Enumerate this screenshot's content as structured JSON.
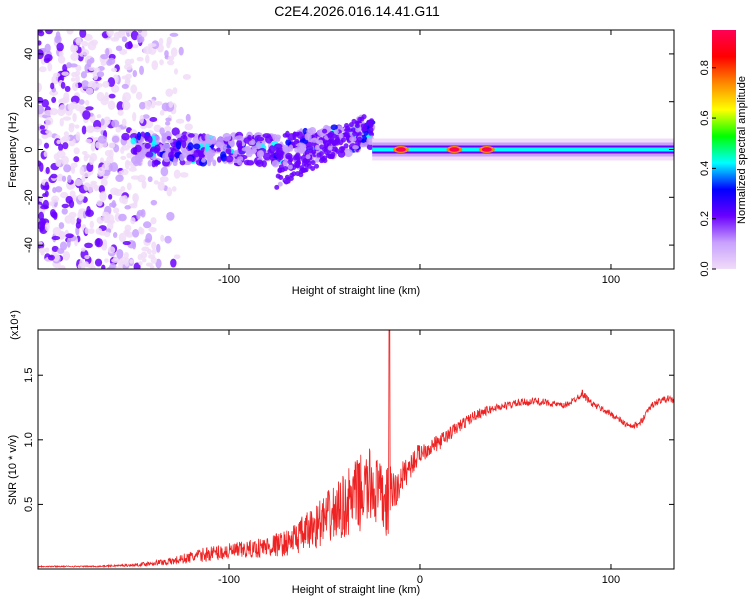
{
  "title": "C2E4.2026.016.14.41.G11",
  "colors": {
    "trace": "#ee2222",
    "frame": "#000000",
    "background": "#ffffff"
  },
  "chart_data": [
    {
      "type": "heatmap",
      "xlabel": "Height of straight line (km)",
      "ylabel": "Frequency (Hz)",
      "xlim": [
        -200,
        133
      ],
      "ylim": [
        -50,
        50
      ],
      "xticks": [
        -100,
        0,
        100
      ],
      "xtick_labels": [
        "-100",
        "",
        "100"
      ],
      "yticks": [
        -40,
        -20,
        0,
        20,
        40
      ],
      "ytick_labels": [
        "-40",
        "-20",
        "0",
        "20",
        "40"
      ],
      "colorbar": {
        "label": "Normalized spectral amplitude",
        "range": [
          0,
          0.95
        ],
        "ticks": [
          0.0,
          0.2,
          0.4,
          0.6,
          0.8
        ],
        "tick_labels": [
          "0.0",
          "0.2",
          "0.4",
          "0.6",
          "0.8"
        ],
        "colors": [
          "#f0dcf8",
          "#c8a0ff",
          "#6a00ff",
          "#0000ff",
          "#00ffff",
          "#00ff00",
          "#ffff00",
          "#ff8800",
          "#ff0000",
          "#ff0055"
        ]
      },
      "features": [
        {
          "name": "scattered-noise",
          "x_range": [
            -200,
            -120
          ],
          "freq_range": [
            -50,
            50
          ],
          "amplitude": 0.12
        },
        {
          "name": "main-band",
          "x_range": [
            -150,
            -25
          ],
          "freq_center": 0,
          "freq_halfwidth": 6,
          "amplitude": 0.3
        },
        {
          "name": "diagonal-stripe",
          "x_from": -75,
          "x_to": -25,
          "freq_from": -12,
          "freq_to": 12,
          "amplitude": 0.25
        },
        {
          "name": "carrier-line",
          "x_range": [
            -25,
            133
          ],
          "freq_center": 0,
          "amplitude": 0.5
        },
        {
          "name": "peak-1",
          "x": -10,
          "freq": 0,
          "amplitude": 0.95
        },
        {
          "name": "peak-2",
          "x": 18,
          "freq": 0,
          "amplitude": 0.9
        },
        {
          "name": "peak-3",
          "x": 35,
          "freq": 0,
          "amplitude": 0.9
        }
      ]
    },
    {
      "type": "line",
      "xlabel": "Height of straight line (km)",
      "ylabel": "SNR (10 * v/v)",
      "y_multiplier": "(x10⁴)",
      "xlim": [
        -200,
        133
      ],
      "ylim": [
        0,
        1.85
      ],
      "xticks": [
        -100,
        0,
        100
      ],
      "xtick_labels": [
        "-100",
        "0",
        "100"
      ],
      "yticks": [
        0.5,
        1.0,
        1.5
      ],
      "ytick_labels": [
        "0.5",
        "1.0",
        "1.5"
      ],
      "series": [
        {
          "name": "SNR",
          "x": [
            -200,
            -170,
            -150,
            -130,
            -110,
            -90,
            -70,
            -60,
            -50,
            -40,
            -35,
            -30,
            -25,
            -20,
            -17,
            -15,
            -12,
            -10,
            -5,
            0,
            10,
            20,
            30,
            40,
            50,
            60,
            70,
            75,
            80,
            85,
            90,
            100,
            110,
            115,
            120,
            125,
            130,
            133
          ],
          "values": [
            0.02,
            0.02,
            0.03,
            0.06,
            0.12,
            0.15,
            0.2,
            0.28,
            0.38,
            0.48,
            0.55,
            0.6,
            0.65,
            0.55,
            0.5,
            0.6,
            0.6,
            0.7,
            0.8,
            0.9,
            0.98,
            1.1,
            1.2,
            1.25,
            1.28,
            1.3,
            1.28,
            1.26,
            1.3,
            1.36,
            1.28,
            1.2,
            1.1,
            1.12,
            1.25,
            1.3,
            1.32,
            1.3
          ],
          "noise": [
            0.005,
            0.005,
            0.01,
            0.03,
            0.06,
            0.07,
            0.1,
            0.15,
            0.2,
            0.25,
            0.28,
            0.3,
            0.3,
            0.25,
            0.3,
            0.2,
            0.15,
            0.12,
            0.1,
            0.08,
            0.06,
            0.05,
            0.04,
            0.03,
            0.03,
            0.03,
            0.025,
            0.025,
            0.025,
            0.03,
            0.025,
            0.025,
            0.025,
            0.025,
            0.025,
            0.025,
            0.025,
            0.025
          ]
        }
      ],
      "spike": {
        "x": -16,
        "value": 1.85
      }
    }
  ]
}
